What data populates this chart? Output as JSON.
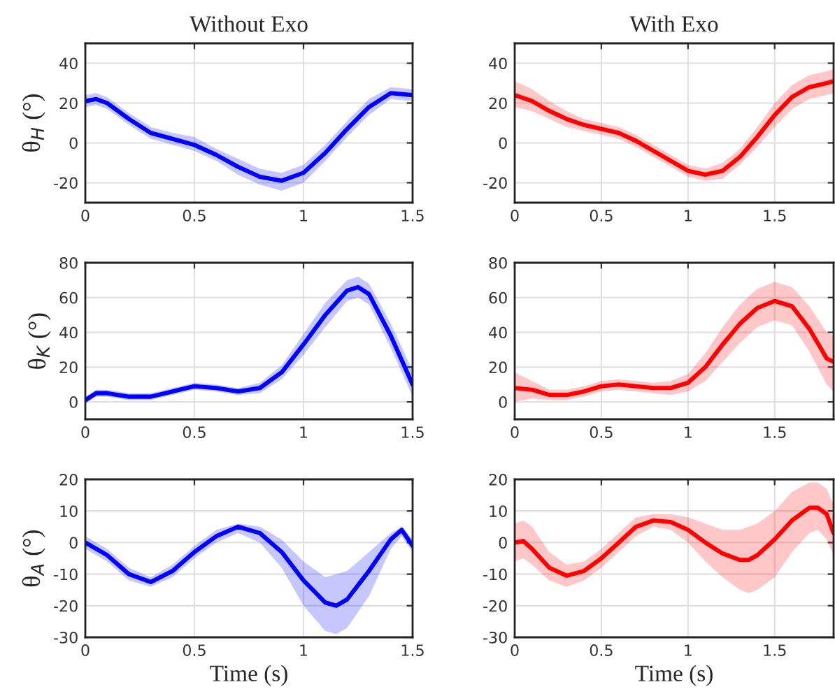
{
  "chart_data": [
    {
      "type": "line",
      "title": "Without Exo",
      "ylabel": "θ$_{H}$ (°)",
      "xlim": [
        0,
        1.5
      ],
      "xticks": [
        0,
        0.5,
        1,
        1.5
      ],
      "ylim": [
        -30,
        50
      ],
      "yticks": [
        -20,
        0,
        20,
        40
      ],
      "grid": true,
      "series": [
        {
          "color": "#0000ff",
          "x": [
            0,
            0.05,
            0.1,
            0.2,
            0.3,
            0.4,
            0.5,
            0.6,
            0.7,
            0.8,
            0.9,
            1.0,
            1.1,
            1.2,
            1.3,
            1.4,
            1.5
          ],
          "values": [
            21,
            22,
            20,
            12,
            5,
            2,
            -1,
            -6,
            -12,
            -17,
            -19,
            -15,
            -5,
            7,
            18,
            25,
            24
          ],
          "lower": [
            18,
            19,
            17,
            9,
            2,
            -1,
            -4,
            -9,
            -16,
            -21,
            -24,
            -20,
            -9,
            3,
            14,
            22,
            21
          ],
          "upper": [
            24,
            25,
            23,
            15,
            8,
            5,
            3,
            -3,
            -8,
            -13,
            -15,
            -11,
            -1,
            11,
            22,
            28,
            27
          ]
        }
      ]
    },
    {
      "type": "line",
      "title": "With Exo",
      "xlim": [
        0,
        1.84
      ],
      "xticks": [
        0,
        0.5,
        1,
        1.5
      ],
      "ylim": [
        -30,
        50
      ],
      "yticks": [
        -20,
        0,
        20,
        40
      ],
      "grid": true,
      "series": [
        {
          "color": "#ff0000",
          "x": [
            0,
            0.1,
            0.2,
            0.3,
            0.4,
            0.5,
            0.6,
            0.7,
            0.8,
            0.9,
            1.0,
            1.1,
            1.2,
            1.3,
            1.4,
            1.5,
            1.6,
            1.7,
            1.8,
            1.84
          ],
          "values": [
            24,
            21,
            16,
            12,
            9,
            7,
            5,
            1,
            -4,
            -9,
            -14,
            -16,
            -14,
            -7,
            3,
            14,
            23,
            28,
            30,
            31
          ],
          "lower": [
            18,
            16,
            12,
            8,
            6,
            4,
            2,
            -2,
            -7,
            -12,
            -17,
            -19,
            -18,
            -11,
            -2,
            8,
            17,
            22,
            24,
            25
          ],
          "upper": [
            31,
            27,
            21,
            16,
            12,
            10,
            8,
            4,
            -1,
            -6,
            -11,
            -13,
            -10,
            -3,
            8,
            20,
            29,
            34,
            36,
            37
          ]
        }
      ]
    },
    {
      "type": "line",
      "ylabel": "θ$_{K}$ (°)",
      "xlim": [
        0,
        1.5
      ],
      "xticks": [
        0,
        0.5,
        1,
        1.5
      ],
      "ylim": [
        -10,
        80
      ],
      "yticks": [
        0,
        20,
        40,
        60,
        80
      ],
      "grid": true,
      "series": [
        {
          "color": "#0000ff",
          "x": [
            0,
            0.05,
            0.1,
            0.2,
            0.3,
            0.4,
            0.5,
            0.6,
            0.7,
            0.8,
            0.9,
            1.0,
            1.1,
            1.2,
            1.25,
            1.3,
            1.4,
            1.5
          ],
          "values": [
            1,
            5,
            5,
            3,
            3,
            6,
            9,
            8,
            6,
            8,
            17,
            33,
            50,
            64,
            66,
            62,
            38,
            10
          ],
          "lower": [
            -1,
            3,
            3,
            1,
            1,
            4,
            7,
            6,
            4,
            5,
            13,
            27,
            43,
            58,
            60,
            56,
            31,
            3
          ],
          "upper": [
            3,
            7,
            7,
            5,
            5,
            8,
            11,
            10,
            8,
            11,
            21,
            39,
            57,
            70,
            72,
            68,
            45,
            18
          ]
        }
      ]
    },
    {
      "type": "line",
      "xlim": [
        0,
        1.84
      ],
      "xticks": [
        0,
        0.5,
        1,
        1.5
      ],
      "ylim": [
        -10,
        80
      ],
      "yticks": [
        0,
        20,
        40,
        60,
        80
      ],
      "grid": true,
      "series": [
        {
          "color": "#ff0000",
          "x": [
            0,
            0.1,
            0.2,
            0.3,
            0.4,
            0.5,
            0.6,
            0.7,
            0.8,
            0.9,
            1.0,
            1.1,
            1.2,
            1.3,
            1.4,
            1.5,
            1.6,
            1.7,
            1.8,
            1.84
          ],
          "values": [
            8,
            7,
            4,
            4,
            6,
            9,
            10,
            9,
            8,
            8,
            11,
            20,
            33,
            45,
            54,
            58,
            55,
            42,
            25,
            23
          ],
          "lower": [
            0,
            2,
            1,
            1,
            3,
            6,
            7,
            6,
            5,
            4,
            6,
            12,
            23,
            34,
            43,
            47,
            44,
            29,
            10,
            6
          ],
          "upper": [
            17,
            12,
            7,
            7,
            9,
            12,
            13,
            12,
            11,
            12,
            16,
            28,
            43,
            56,
            65,
            69,
            66,
            55,
            40,
            38
          ]
        }
      ]
    },
    {
      "type": "line",
      "ylabel": "θ$_{A}$ (°)",
      "xlabel": "Time (s)",
      "xlim": [
        0,
        1.5
      ],
      "xticks": [
        0,
        0.5,
        1,
        1.5
      ],
      "ylim": [
        -30,
        20
      ],
      "yticks": [
        -30,
        -20,
        -10,
        0,
        10,
        20
      ],
      "grid": true,
      "series": [
        {
          "color": "#0000ff",
          "x": [
            0,
            0.1,
            0.2,
            0.3,
            0.4,
            0.5,
            0.6,
            0.7,
            0.8,
            0.9,
            1.0,
            1.1,
            1.15,
            1.2,
            1.3,
            1.4,
            1.45,
            1.5
          ],
          "values": [
            0,
            -4,
            -10,
            -12.5,
            -9,
            -3,
            2,
            5,
            3,
            -3,
            -12,
            -19,
            -20,
            -18,
            -9,
            1,
            4,
            -1
          ],
          "lower": [
            -2,
            -6,
            -12,
            -14,
            -11,
            -5,
            0,
            3,
            0,
            -8,
            -20,
            -28,
            -29,
            -27,
            -17,
            -2,
            2,
            -3
          ],
          "upper": [
            2,
            -2,
            -8,
            -11,
            -7,
            -1,
            4,
            6,
            5,
            1,
            -6,
            -11,
            -10,
            -9,
            -3,
            3,
            5,
            1
          ]
        }
      ]
    },
    {
      "type": "line",
      "xlabel": "Time (s)",
      "xlim": [
        0,
        1.84
      ],
      "xticks": [
        0,
        0.5,
        1,
        1.5
      ],
      "ylim": [
        -30,
        20
      ],
      "yticks": [
        -30,
        -20,
        -10,
        0,
        10,
        20
      ],
      "grid": true,
      "series": [
        {
          "color": "#ff0000",
          "x": [
            0,
            0.05,
            0.1,
            0.2,
            0.3,
            0.4,
            0.5,
            0.6,
            0.7,
            0.8,
            0.9,
            1.0,
            1.1,
            1.2,
            1.3,
            1.35,
            1.4,
            1.5,
            1.6,
            1.7,
            1.75,
            1.8,
            1.84
          ],
          "values": [
            0,
            0.5,
            -2,
            -8,
            -10.5,
            -9,
            -5,
            0,
            5,
            7,
            6.5,
            4,
            0,
            -3.5,
            -5.5,
            -5.5,
            -4,
            1,
            7,
            11,
            11,
            9,
            3
          ],
          "lower": [
            -6,
            -5,
            -7,
            -12,
            -14,
            -12,
            -8,
            -3,
            2,
            5,
            4,
            0,
            -6,
            -11,
            -15,
            -16,
            -15,
            -11,
            -3,
            3,
            4,
            1,
            -4
          ],
          "upper": [
            6,
            7,
            5,
            -3,
            -7,
            -6,
            -2,
            3,
            8,
            9,
            9,
            8,
            6,
            4,
            4,
            5,
            6,
            10,
            16,
            19,
            19,
            17,
            12
          ]
        }
      ]
    }
  ]
}
